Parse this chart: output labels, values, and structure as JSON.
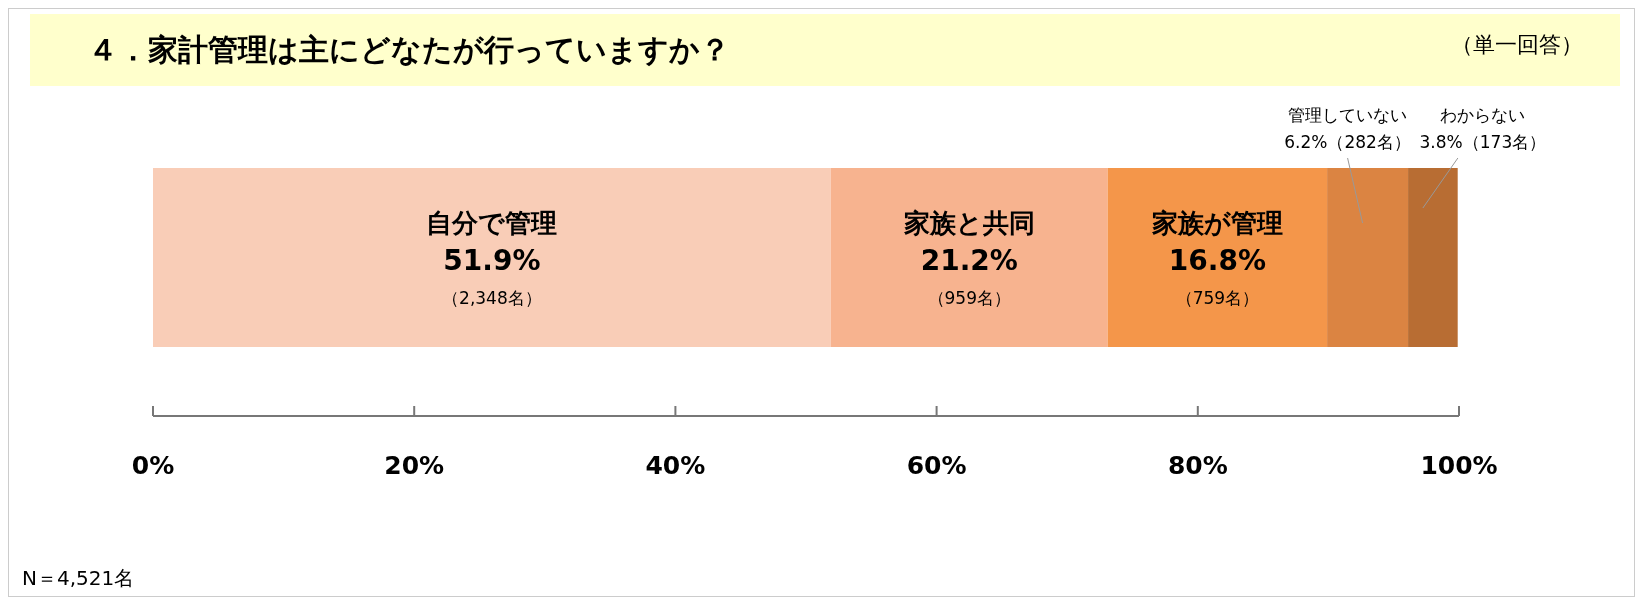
{
  "chart_data": {
    "type": "bar",
    "orientation": "horizontal",
    "stacked": true,
    "title": "４．家計管理は主にどなたが行っていますか？",
    "subtitle": "（単一回答）",
    "categories": [
      null
    ],
    "series": [
      {
        "name": "自分で管理",
        "color": "#f9cdb7",
        "values": [
          51.9
        ],
        "value_labels": [
          "51.9%"
        ]
      },
      {
        "name": "家族と共同",
        "color": "#f7b38f",
        "values": [
          21.2
        ],
        "value_labels": [
          "21.2%"
        ]
      },
      {
        "name": "家族が管理",
        "color": "#f4964a",
        "values": [
          16.8
        ],
        "value_labels": [
          "16.8%"
        ]
      },
      {
        "name": "管理していない",
        "color": "#db8442",
        "values": [
          6.2
        ],
        "value_labels": [
          "6.2%"
        ]
      },
      {
        "name": "わからない",
        "color": "#b86d33",
        "values": [
          3.8
        ],
        "value_labels": [
          "3.8%"
        ]
      }
    ],
    "annotations": [
      "（2,348名）",
      "（959名）",
      "（759名）",
      "（282名）",
      "（173名）",
      "N＝4,521名"
    ],
    "xlim": [
      0,
      100
    ],
    "xticks": [
      {
        "value": 0,
        "label": "0%"
      },
      {
        "value": 20,
        "label": "20%"
      },
      {
        "value": 40,
        "label": "40%"
      },
      {
        "value": 60,
        "label": "60%"
      },
      {
        "value": 80,
        "label": "80%"
      },
      {
        "value": 100,
        "label": "100%"
      }
    ],
    "grid": false
  }
}
